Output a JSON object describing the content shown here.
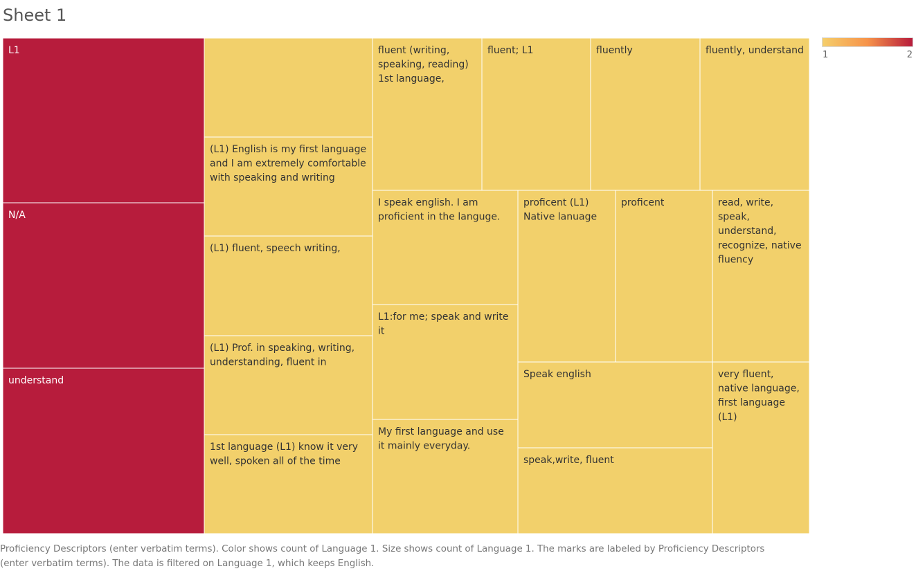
{
  "sheet": {
    "title": "Sheet 1"
  },
  "legend": {
    "min_label": "1",
    "max_label": "2",
    "color_low": "#f5ce6b",
    "color_mid": "#f6934a",
    "color_high": "#b71c3c"
  },
  "caption": {
    "line1": "Proficiency Descriptors (enter verbatim terms).  Color shows count of Language 1.  Size shows count of Language 1.  The marks are labeled by Proficiency Descriptors",
    "line2": "(enter verbatim terms). The data is filtered on Language 1, which keeps English."
  },
  "chart_data": {
    "type": "treemap",
    "title": "Sheet 1",
    "measure": "count of Language 1",
    "color_low": "#f2d06b",
    "color_high": "#b71c3c",
    "items": [
      {
        "label": "L1",
        "value": 2
      },
      {
        "label": "N/A",
        "value": 2
      },
      {
        "label": "understand",
        "value": 2
      },
      {
        "label": "",
        "value": 1
      },
      {
        "label": "(L1) English is my first language and I am extremely comfortable with speaking and writing",
        "value": 1
      },
      {
        "label": "(L1) fluent, speech writing,",
        "value": 1
      },
      {
        "label": "(L1) Prof. in speaking, writing, understanding, fluent in",
        "value": 1
      },
      {
        "label": "1st language (L1) know it very well, spoken all of the time",
        "value": 1
      },
      {
        "label": "fluent (writing, speaking, reading) 1st language,",
        "value": 1
      },
      {
        "label": "fluent; L1",
        "value": 1
      },
      {
        "label": "fluently",
        "value": 1
      },
      {
        "label": "fluently, understand",
        "value": 1
      },
      {
        "label": "I speak english. I am proficient in the languge.",
        "value": 1
      },
      {
        "label": "L1:for me; speak and write it",
        "value": 1
      },
      {
        "label": "My first language and use it mainly everyday.",
        "value": 1
      },
      {
        "label": "proficent (L1) Native lanuage",
        "value": 1
      },
      {
        "label": "proficent",
        "value": 1
      },
      {
        "label": "read, write, speak, understand, recognize, native fluency",
        "value": 1
      },
      {
        "label": "Speak english",
        "value": 1
      },
      {
        "label": "speak,write, fluent",
        "value": 1
      },
      {
        "label": "very fluent, native language, first language (L1)",
        "value": 1
      }
    ]
  }
}
